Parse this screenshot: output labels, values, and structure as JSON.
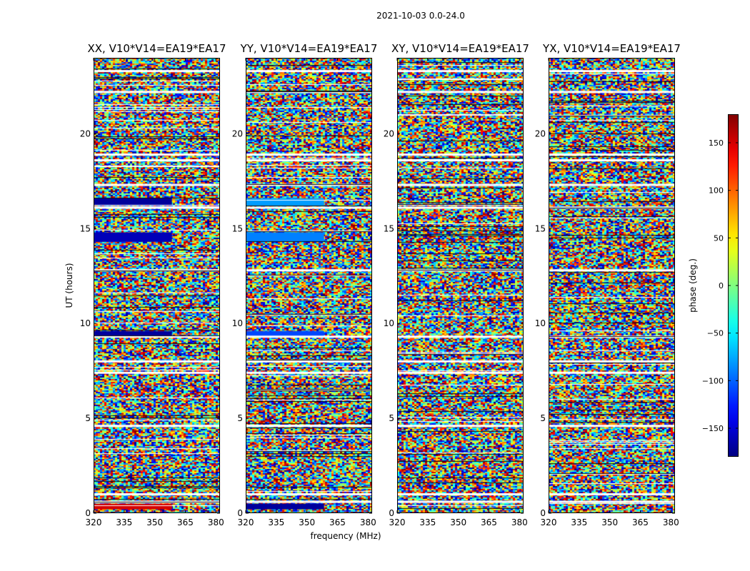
{
  "suptitle": "2021-10-03 0.0-24.0",
  "chart_data": {
    "type": "heatmap",
    "xlabel": "frequency (MHz)",
    "ylabel": "UT (hours)",
    "xlim": [
      320,
      382
    ],
    "ylim": [
      0,
      24
    ],
    "xticks": [
      320,
      335,
      350,
      365,
      380
    ],
    "yticks": [
      0,
      5,
      10,
      15,
      20
    ],
    "panels": [
      {
        "title": "XX, V10*V14=EA19*EA17",
        "polarization": "XX"
      },
      {
        "title": "YY, V10*V14=EA19*EA17",
        "polarization": "YY"
      },
      {
        "title": "XY, V10*V14=EA19*EA17",
        "polarization": "XY"
      },
      {
        "title": "YX, V10*V14=EA19*EA17",
        "polarization": "YX"
      }
    ],
    "colorbar": {
      "label": "phase (deg.)",
      "range": [
        -180,
        180
      ],
      "ticks": [
        -150,
        -100,
        -50,
        0,
        50,
        100,
        150
      ],
      "colormap": "jet"
    },
    "masked_ut_gaps": [
      0.6,
      1.0,
      4.6,
      7.4,
      8.0,
      9.3,
      12.8,
      16.1,
      17.3,
      18.6,
      18.9,
      22.2,
      23.3
    ],
    "coherent_phase_bands": [
      {
        "ut": [
          16.2,
          16.6
        ],
        "XX_phase": -170,
        "YY_phase": -80
      },
      {
        "ut": [
          14.3,
          14.8
        ],
        "XX_phase": -160,
        "YY_phase": -90
      },
      {
        "ut": [
          9.3,
          9.6
        ],
        "XX_phase": -170,
        "YY_phase": -110
      },
      {
        "ut": [
          0.2,
          0.5
        ],
        "XX_phase": 150,
        "YY_phase": -170
      }
    ]
  }
}
